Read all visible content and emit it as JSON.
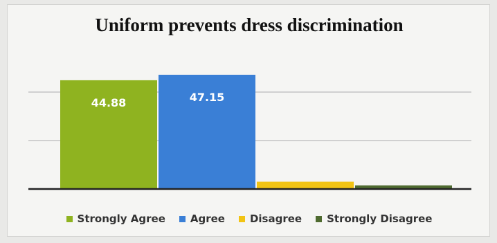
{
  "chart_data": {
    "type": "bar",
    "title": "Uniform prevents dress discrimination",
    "categories": [
      "Strongly Agree",
      "Agree",
      "Disagree",
      "Strongly Disagree"
    ],
    "values": [
      44.88,
      47.15,
      3.0,
      1.5
    ],
    "data_labels": [
      "44.88",
      "47.15",
      "",
      ""
    ],
    "colors": [
      "#8fb320",
      "#3a7fd6",
      "#f2c414",
      "#4f6b30"
    ],
    "ylim": [
      0,
      50
    ],
    "grid": true,
    "legend_position": "bottom"
  }
}
